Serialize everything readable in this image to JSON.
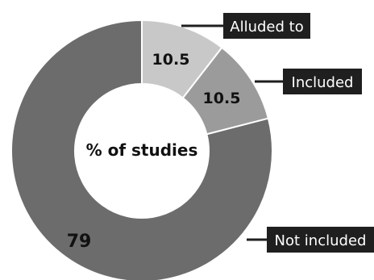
{
  "chart_data": {
    "type": "pie",
    "style": "donut",
    "center_label": "% of studies",
    "slices": [
      {
        "label": "Alluded to",
        "value": 10.5,
        "value_label": "10.5",
        "color": "#c8c8c8"
      },
      {
        "label": "Included",
        "value": 10.5,
        "value_label": "10.5",
        "color": "#9b9b9b"
      },
      {
        "label": "Not included",
        "value": 79,
        "value_label": "79",
        "color": "#6c6c6c"
      }
    ],
    "slice_border_color": "#ffffff",
    "callout_background": "#1f1f1f",
    "callout_text_color": "#ffffff",
    "legend": "callouts"
  }
}
